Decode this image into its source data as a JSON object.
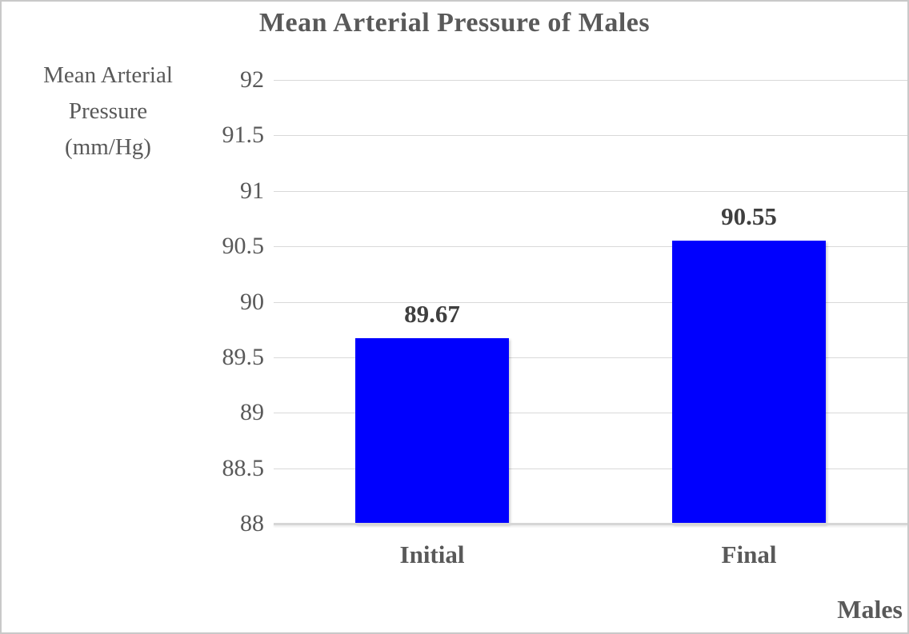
{
  "chart_data": {
    "type": "bar",
    "title": "Mean Arterial Pressure of Males",
    "ylabel": "Mean Arterial\nPressure\n(mm/Hg)",
    "xlabel": "Males",
    "categories": [
      "Initial",
      "Final"
    ],
    "values": [
      89.67,
      90.55
    ],
    "value_labels": [
      "89.67",
      "90.55"
    ],
    "ytick_labels": [
      "88",
      "88.5",
      "89",
      "89.5",
      "90",
      "90.5",
      "91",
      "91.5",
      "92"
    ],
    "ytick_values": [
      88,
      88.5,
      89,
      89.5,
      90,
      90.5,
      91,
      91.5,
      92
    ],
    "ylim": [
      88,
      92
    ],
    "grid": "horizontal",
    "legend": "none",
    "colors": {
      "bar": "#0000fe",
      "gridline": "#d9d9d9",
      "axis_line": "#d6d6d6",
      "title_text": "#595959",
      "axis_text": "#595959",
      "value_label_text": "#3f3f3f"
    }
  }
}
